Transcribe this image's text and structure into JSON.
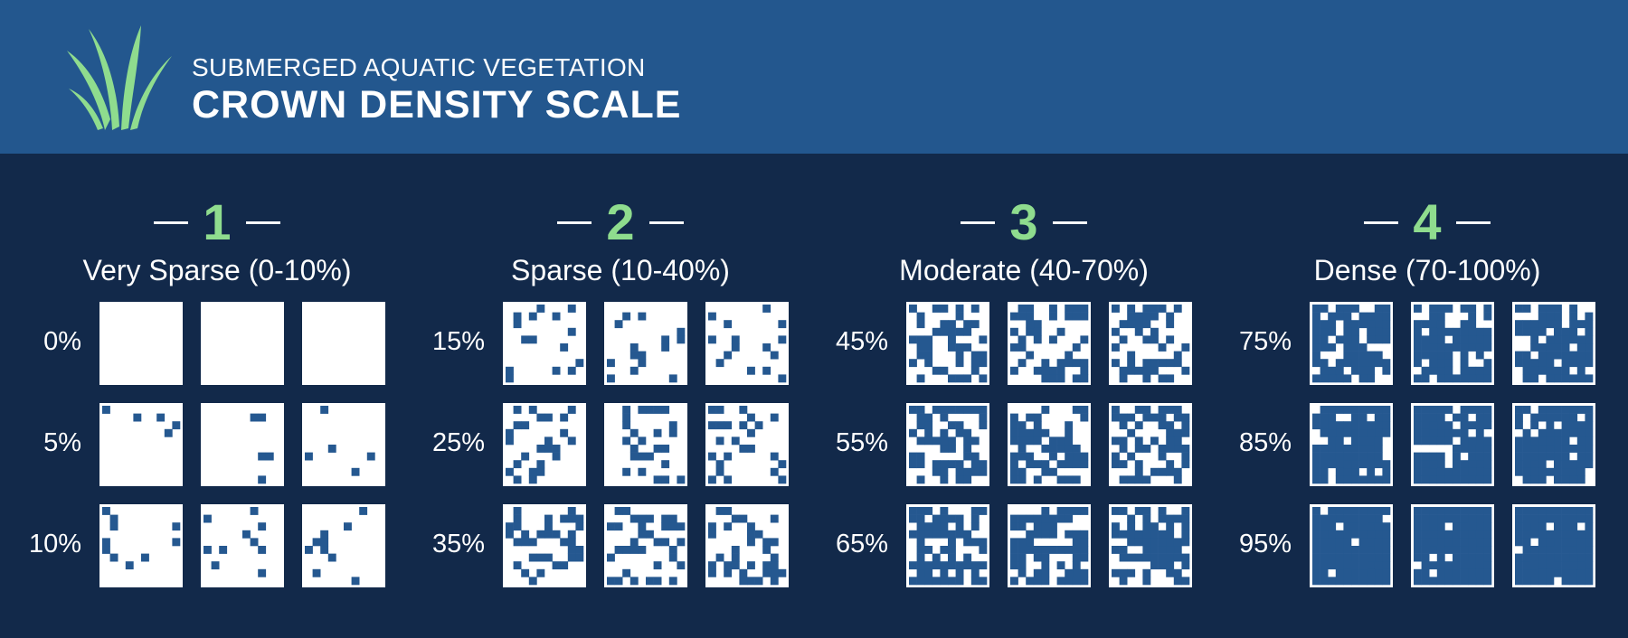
{
  "header": {
    "subtitle": "SUBMERGED AQUATIC VEGETATION",
    "title": "CROWN DENSITY SCALE",
    "logo_icon": "grass-icon",
    "logo_color": "#8fdc8e",
    "background_color": "#23578e"
  },
  "colors": {
    "page_background": "#12294a",
    "tile_background": "#ffffff",
    "vegetation": "#255890",
    "class_number": "#8fdc8e"
  },
  "groups": [
    {
      "number": "1",
      "label": "Very Sparse (0-10%)",
      "rows": [
        {
          "label": "0%",
          "density": 0
        },
        {
          "label": "5%",
          "density": 5
        },
        {
          "label": "10%",
          "density": 10
        }
      ]
    },
    {
      "number": "2",
      "label": "Sparse (10-40%)",
      "rows": [
        {
          "label": "15%",
          "density": 15
        },
        {
          "label": "25%",
          "density": 25
        },
        {
          "label": "35%",
          "density": 35
        }
      ]
    },
    {
      "number": "3",
      "label": "Moderate (40-70%)",
      "rows": [
        {
          "label": "45%",
          "density": 45
        },
        {
          "label": "55%",
          "density": 55
        },
        {
          "label": "65%",
          "density": 65
        }
      ]
    },
    {
      "number": "4",
      "label": "Dense (70-100%)",
      "rows": [
        {
          "label": "75%",
          "density": 75
        },
        {
          "label": "85%",
          "density": 85
        },
        {
          "label": "95%",
          "density": 95
        }
      ]
    }
  ]
}
